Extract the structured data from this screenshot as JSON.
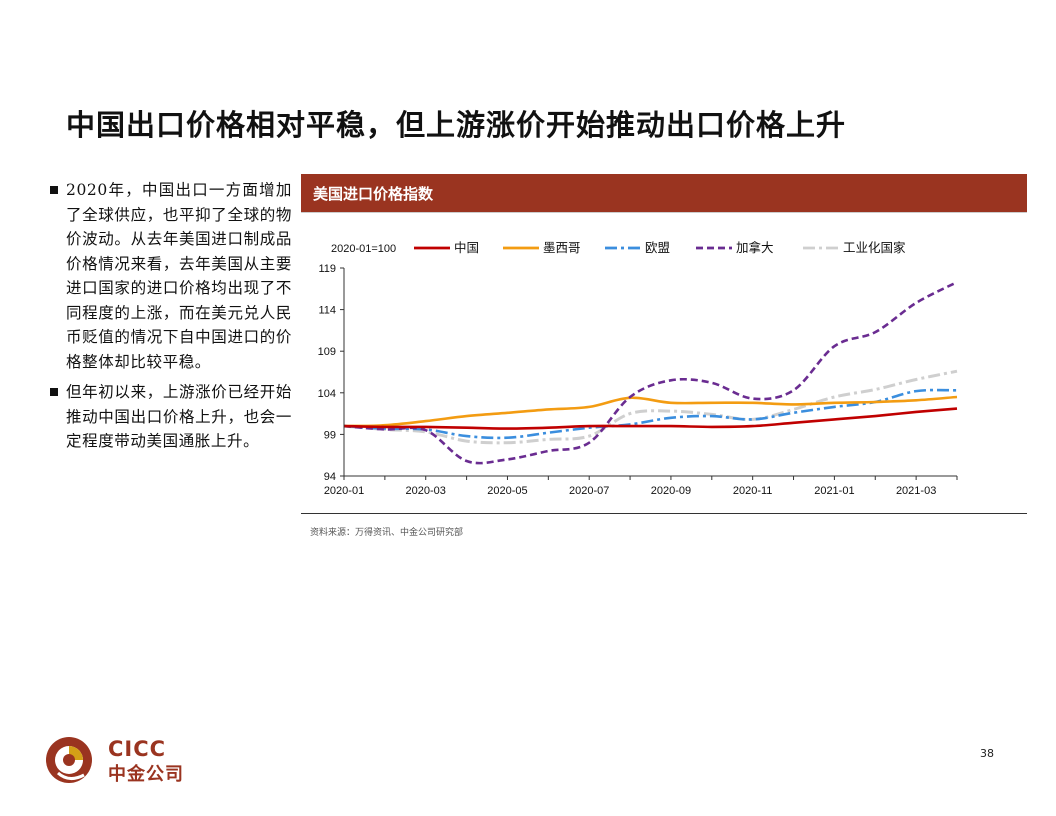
{
  "slide": {
    "title": "中国出口价格相对平稳，但上游涨价开始推动出口价格上升",
    "page_number": "38",
    "bullets": [
      "2020年，中国出口一方面增加了全球供应，也平抑了全球的物价波动。从去年美国进口制成品价格情况来看，去年美国从主要进口国家的进口价格均出现了不同程度的上涨，而在美元兑人民币贬值的情况下自中国进口的价格整体却比较平稳。",
      "但年初以来，上游涨价已经开始推动中国出口价格上升，也会一定程度带动美国通胀上升。"
    ],
    "source": "资料来源：万得资讯、中金公司研究部"
  },
  "logo": {
    "en": "CICC",
    "zh": "中金公司",
    "brand_color": "#9a3420"
  },
  "chart_data": {
    "type": "line",
    "title": "美国进口价格指数",
    "base_label": "2020-01=100",
    "x": [
      "2020-01",
      "2020-02",
      "2020-03",
      "2020-04",
      "2020-05",
      "2020-06",
      "2020-07",
      "2020-08",
      "2020-09",
      "2020-10",
      "2020-11",
      "2020-12",
      "2021-01",
      "2021-02",
      "2021-03",
      "2021-04"
    ],
    "x_tick_labels": [
      "2020-01",
      "2020-03",
      "2020-05",
      "2020-07",
      "2020-09",
      "2020-11",
      "2021-01",
      "2021-03"
    ],
    "ylim": [
      94,
      119
    ],
    "y_ticks": [
      94,
      99,
      104,
      109,
      114,
      119
    ],
    "legend_position": "top",
    "series": [
      {
        "name": "中国",
        "color": "#c00000",
        "style": "solid",
        "values": [
          100,
          99.9,
          99.9,
          99.8,
          99.7,
          99.8,
          100.0,
          100.0,
          100.0,
          99.9,
          100.0,
          100.4,
          100.8,
          101.2,
          101.7,
          102.1
        ]
      },
      {
        "name": "墨西哥",
        "color": "#f39c12",
        "style": "solid",
        "values": [
          100,
          100.1,
          100.6,
          101.2,
          101.6,
          102.0,
          102.3,
          103.4,
          102.8,
          102.8,
          102.8,
          102.6,
          102.8,
          102.9,
          103.1,
          103.5
        ]
      },
      {
        "name": "欧盟",
        "color": "#3b8ede",
        "style": "dashdot",
        "values": [
          100,
          99.7,
          99.6,
          98.8,
          98.6,
          99.2,
          99.8,
          100.2,
          101.0,
          101.2,
          100.8,
          101.6,
          102.3,
          102.9,
          104.2,
          104.3
        ]
      },
      {
        "name": "加拿大",
        "color": "#6a2c91",
        "style": "dashed",
        "values": [
          100,
          99.6,
          99.5,
          95.8,
          96.0,
          97.0,
          98.0,
          103.5,
          105.5,
          105.2,
          103.3,
          104.3,
          109.6,
          111.3,
          114.8,
          117.3
        ]
      },
      {
        "name": "工业化国家",
        "color": "#cfcfcf",
        "style": "dashdot",
        "values": [
          100,
          99.6,
          99.3,
          98.2,
          98.0,
          98.4,
          98.8,
          101.5,
          101.8,
          101.4,
          100.8,
          102.0,
          103.5,
          104.4,
          105.6,
          106.6
        ]
      }
    ]
  }
}
